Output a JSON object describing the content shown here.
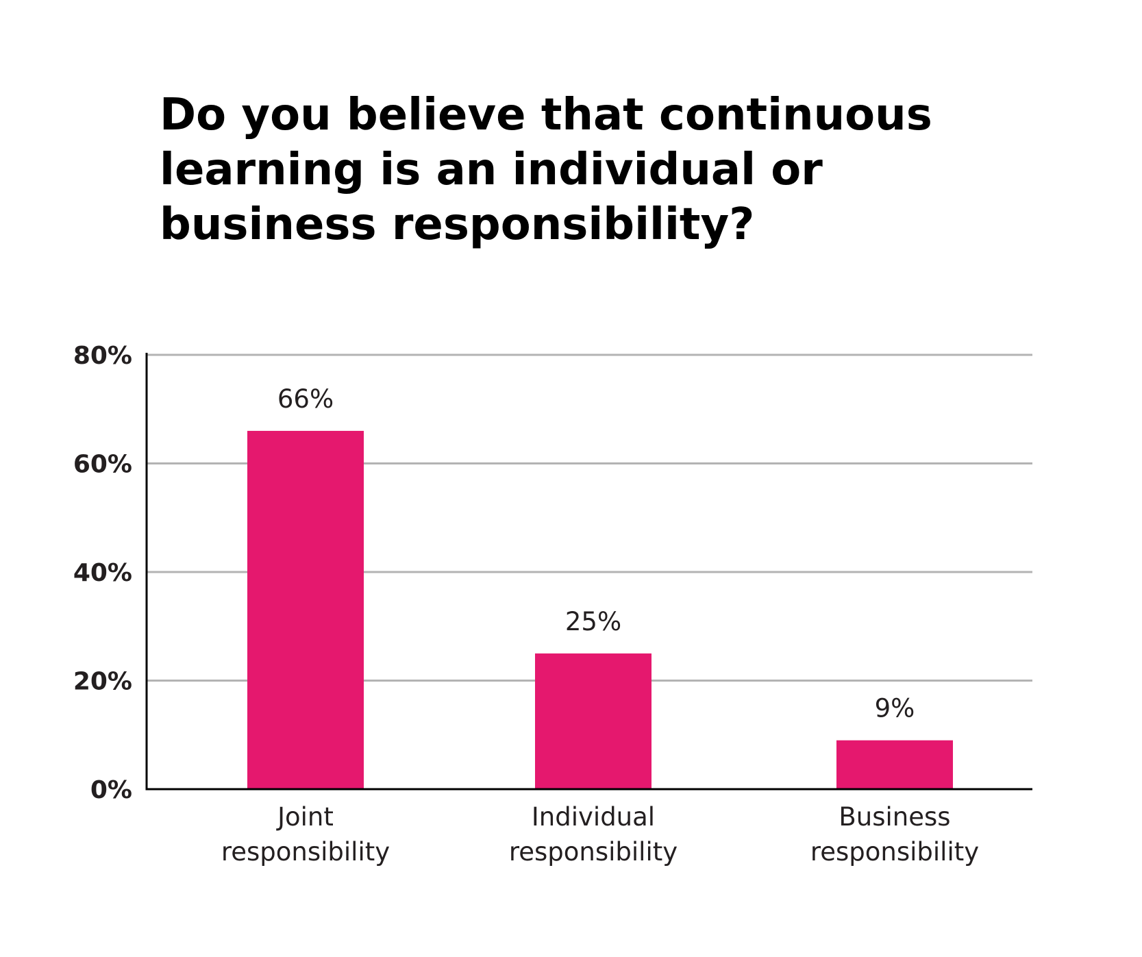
{
  "title_lines": [
    "Do you believe that continuous",
    "learning is an individual or",
    "business responsibility?"
  ],
  "colors": {
    "bar": "#e5186e",
    "grid": "#b3b3b3",
    "axis": "#000000",
    "text": "#231f20"
  },
  "chart_data": {
    "type": "bar",
    "title": "Do you believe that continuous learning is an individual or business responsibility?",
    "categories": [
      [
        "Joint",
        "responsibility"
      ],
      [
        "Individual",
        "responsibility"
      ],
      [
        "Business",
        "responsibility"
      ]
    ],
    "values": [
      66,
      25,
      9
    ],
    "data_labels": [
      "66%",
      "25%",
      "9%"
    ],
    "ylim": [
      0,
      80
    ],
    "yticks": [
      0,
      20,
      40,
      60,
      80
    ],
    "ytick_labels": [
      "0%",
      "20%",
      "40%",
      "60%",
      "80%"
    ],
    "xlabel": "",
    "ylabel": "",
    "grid": true,
    "legend": "none"
  }
}
